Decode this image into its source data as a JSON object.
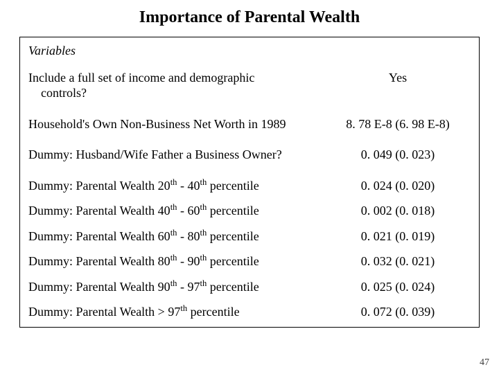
{
  "title": "Importance of Parental Wealth",
  "header": "Variables",
  "page_number": "47",
  "colors": {
    "background": "#ffffff",
    "text": "#000000",
    "border": "#000000",
    "pagenum": "#404040"
  },
  "typography": {
    "font_family": "Times New Roman",
    "title_fontsize": 24,
    "body_fontsize": 18,
    "pagenum_fontsize": 14
  },
  "rows": [
    {
      "label_plain": "Include a full set of income and demographic controls?",
      "value": "Yes"
    },
    {
      "label_plain": "Household's Own Non-Business Net Worth in 1989",
      "value": "8. 78 E-8 (6. 98 E-8)"
    },
    {
      "label_plain": "Dummy: Husband/Wife Father a Business Owner?",
      "value": "0. 049 (0. 023)"
    },
    {
      "label_plain": "Dummy: Parental Wealth 20th - 40th percentile",
      "value": "0. 024 (0. 020)"
    },
    {
      "label_plain": "Dummy: Parental Wealth 40th - 60th percentile",
      "value": "0. 002 (0. 018)"
    },
    {
      "label_plain": "Dummy: Parental Wealth 60th - 80th percentile",
      "value": "0. 021 (0. 019)"
    },
    {
      "label_plain": "Dummy: Parental Wealth 80th - 90th percentile",
      "value": "0. 032 (0. 021)"
    },
    {
      "label_plain": "Dummy: Parental Wealth 90th - 97th percentile",
      "value": "0. 025 (0. 024)"
    },
    {
      "label_plain": "Dummy: Parental Wealth > 97th percentile",
      "value": "0. 072 (0. 039)"
    }
  ]
}
